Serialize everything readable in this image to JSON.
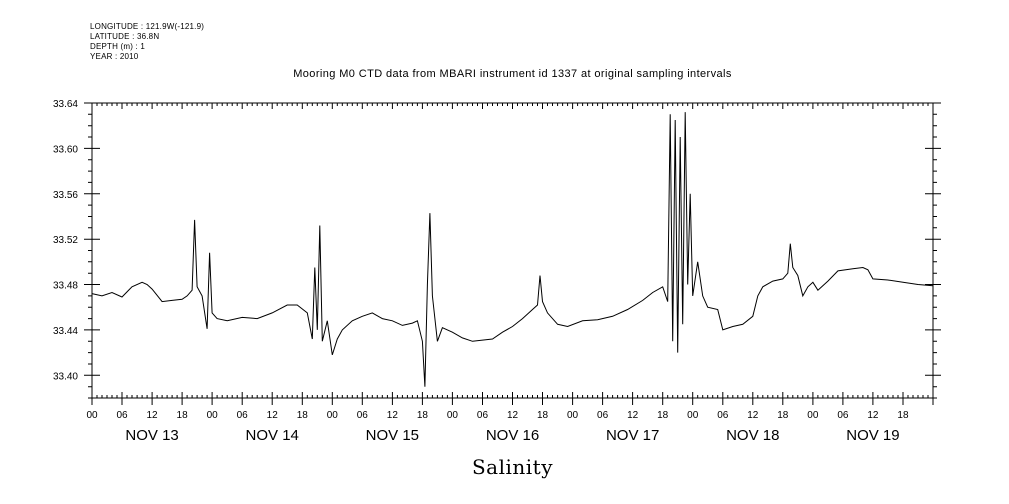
{
  "header": {
    "longitude": "LONGITUDE : 121.9W(-121.9)",
    "latitude": "LATITUDE : 36.8N",
    "depth": "DEPTH (m) : 1",
    "year": "YEAR : 2010"
  },
  "chart_data": {
    "type": "line",
    "title": "Mooring M0 CTD data from MBARI instrument id 1337 at original sampling intervals",
    "xlabel": "Salinity",
    "ylabel": "",
    "ylim": [
      33.38,
      33.64
    ],
    "yticks": [
      "33.40",
      "33.44",
      "33.48",
      "33.52",
      "33.56",
      "33.60",
      "33.64"
    ],
    "xlim": [
      "2010-11-13T00:00",
      "2010-11-20T00:00"
    ],
    "x_hour_ticks": [
      "00",
      "06",
      "12",
      "18",
      "00",
      "06",
      "12",
      "18",
      "00",
      "06",
      "12",
      "18",
      "00",
      "06",
      "12",
      "18",
      "00",
      "06",
      "12",
      "18",
      "00",
      "06",
      "12",
      "18",
      "00",
      "06",
      "12",
      "18"
    ],
    "x_day_labels": [
      "NOV 13",
      "NOV 14",
      "NOV 15",
      "NOV 16",
      "NOV 17",
      "NOV 18",
      "NOV 19"
    ],
    "grid": false,
    "series": [
      {
        "values": [
          [
            "2010-11-13T00:00",
            33.472
          ],
          [
            "2010-11-13T02:00",
            33.47
          ],
          [
            "2010-11-13T04:00",
            33.473
          ],
          [
            "2010-11-13T06:00",
            33.469
          ],
          [
            "2010-11-13T08:00",
            33.478
          ],
          [
            "2010-11-13T10:00",
            33.482
          ],
          [
            "2010-11-13T11:00",
            33.48
          ],
          [
            "2010-11-13T12:00",
            33.476
          ],
          [
            "2010-11-13T14:00",
            33.465
          ],
          [
            "2010-11-13T16:00",
            33.466
          ],
          [
            "2010-11-13T18:00",
            33.467
          ],
          [
            "2010-11-13T19:00",
            33.47
          ],
          [
            "2010-11-13T20:00",
            33.475
          ],
          [
            "2010-11-13T20:30",
            33.537
          ],
          [
            "2010-11-13T21:00",
            33.478
          ],
          [
            "2010-11-13T22:00",
            33.47
          ],
          [
            "2010-11-13T23:00",
            33.441
          ],
          [
            "2010-11-13T23:30",
            33.508
          ],
          [
            "2010-11-14T00:00",
            33.455
          ],
          [
            "2010-11-14T01:00",
            33.45
          ],
          [
            "2010-11-14T03:00",
            33.448
          ],
          [
            "2010-11-14T06:00",
            33.451
          ],
          [
            "2010-11-14T09:00",
            33.45
          ],
          [
            "2010-11-14T12:00",
            33.455
          ],
          [
            "2010-11-14T15:00",
            33.462
          ],
          [
            "2010-11-14T17:00",
            33.462
          ],
          [
            "2010-11-14T19:00",
            33.455
          ],
          [
            "2010-11-14T20:00",
            33.432
          ],
          [
            "2010-11-14T20:30",
            33.495
          ],
          [
            "2010-11-14T21:00",
            33.44
          ],
          [
            "2010-11-14T21:30",
            33.532
          ],
          [
            "2010-11-14T22:00",
            33.43
          ],
          [
            "2010-11-14T23:00",
            33.448
          ],
          [
            "2010-11-15T00:00",
            33.418
          ],
          [
            "2010-11-15T01:00",
            33.432
          ],
          [
            "2010-11-15T02:00",
            33.44
          ],
          [
            "2010-11-15T04:00",
            33.448
          ],
          [
            "2010-11-15T06:00",
            33.452
          ],
          [
            "2010-11-15T08:00",
            33.455
          ],
          [
            "2010-11-15T10:00",
            33.45
          ],
          [
            "2010-11-15T12:00",
            33.448
          ],
          [
            "2010-11-15T14:00",
            33.444
          ],
          [
            "2010-11-15T16:00",
            33.446
          ],
          [
            "2010-11-15T17:00",
            33.448
          ],
          [
            "2010-11-15T18:00",
            33.43
          ],
          [
            "2010-11-15T18:30",
            33.39
          ],
          [
            "2010-11-15T19:00",
            33.48
          ],
          [
            "2010-11-15T19:30",
            33.543
          ],
          [
            "2010-11-15T20:00",
            33.47
          ],
          [
            "2010-11-15T21:00",
            33.43
          ],
          [
            "2010-11-15T22:00",
            33.442
          ],
          [
            "2010-11-16T00:00",
            33.438
          ],
          [
            "2010-11-16T02:00",
            33.433
          ],
          [
            "2010-11-16T04:00",
            33.43
          ],
          [
            "2010-11-16T06:00",
            33.431
          ],
          [
            "2010-11-16T08:00",
            33.432
          ],
          [
            "2010-11-16T10:00",
            33.438
          ],
          [
            "2010-11-16T12:00",
            33.443
          ],
          [
            "2010-11-16T14:00",
            33.45
          ],
          [
            "2010-11-16T16:00",
            33.458
          ],
          [
            "2010-11-16T17:00",
            33.462
          ],
          [
            "2010-11-16T17:30",
            33.488
          ],
          [
            "2010-11-16T18:00",
            33.465
          ],
          [
            "2010-11-16T19:00",
            33.455
          ],
          [
            "2010-11-16T21:00",
            33.445
          ],
          [
            "2010-11-16T23:00",
            33.443
          ],
          [
            "2010-11-17T02:00",
            33.448
          ],
          [
            "2010-11-17T05:00",
            33.449
          ],
          [
            "2010-11-17T08:00",
            33.452
          ],
          [
            "2010-11-17T11:00",
            33.458
          ],
          [
            "2010-11-17T14:00",
            33.466
          ],
          [
            "2010-11-17T16:00",
            33.473
          ],
          [
            "2010-11-17T18:00",
            33.478
          ],
          [
            "2010-11-17T19:00",
            33.465
          ],
          [
            "2010-11-17T19:30",
            33.63
          ],
          [
            "2010-11-17T20:00",
            33.43
          ],
          [
            "2010-11-17T20:30",
            33.625
          ],
          [
            "2010-11-17T21:00",
            33.42
          ],
          [
            "2010-11-17T21:30",
            33.61
          ],
          [
            "2010-11-17T22:00",
            33.445
          ],
          [
            "2010-11-17T22:30",
            33.632
          ],
          [
            "2010-11-17T23:00",
            33.48
          ],
          [
            "2010-11-17T23:30",
            33.56
          ],
          [
            "2010-11-18T00:00",
            33.47
          ],
          [
            "2010-11-18T01:00",
            33.5
          ],
          [
            "2010-11-18T02:00",
            33.47
          ],
          [
            "2010-11-18T03:00",
            33.46
          ],
          [
            "2010-11-18T05:00",
            33.458
          ],
          [
            "2010-11-18T06:00",
            33.44
          ],
          [
            "2010-11-18T08:00",
            33.443
          ],
          [
            "2010-11-18T10:00",
            33.445
          ],
          [
            "2010-11-18T12:00",
            33.452
          ],
          [
            "2010-11-18T13:00",
            33.47
          ],
          [
            "2010-11-18T14:00",
            33.478
          ],
          [
            "2010-11-18T16:00",
            33.483
          ],
          [
            "2010-11-18T18:00",
            33.485
          ],
          [
            "2010-11-18T19:00",
            33.49
          ],
          [
            "2010-11-18T19:30",
            33.516
          ],
          [
            "2010-11-18T20:00",
            33.495
          ],
          [
            "2010-11-18T21:00",
            33.488
          ],
          [
            "2010-11-18T22:00",
            33.47
          ],
          [
            "2010-11-18T23:00",
            33.478
          ],
          [
            "2010-11-19T00:00",
            33.482
          ],
          [
            "2010-11-19T01:00",
            33.475
          ],
          [
            "2010-11-19T03:00",
            33.483
          ],
          [
            "2010-11-19T05:00",
            33.492
          ],
          [
            "2010-11-19T08:00",
            33.494
          ],
          [
            "2010-11-19T10:00",
            33.495
          ],
          [
            "2010-11-19T11:00",
            33.493
          ],
          [
            "2010-11-19T12:00",
            33.485
          ],
          [
            "2010-11-19T15:00",
            33.484
          ],
          [
            "2010-11-19T18:00",
            33.482
          ],
          [
            "2010-11-19T21:00",
            33.48
          ],
          [
            "2010-11-20T00:00",
            33.479
          ]
        ]
      }
    ]
  }
}
